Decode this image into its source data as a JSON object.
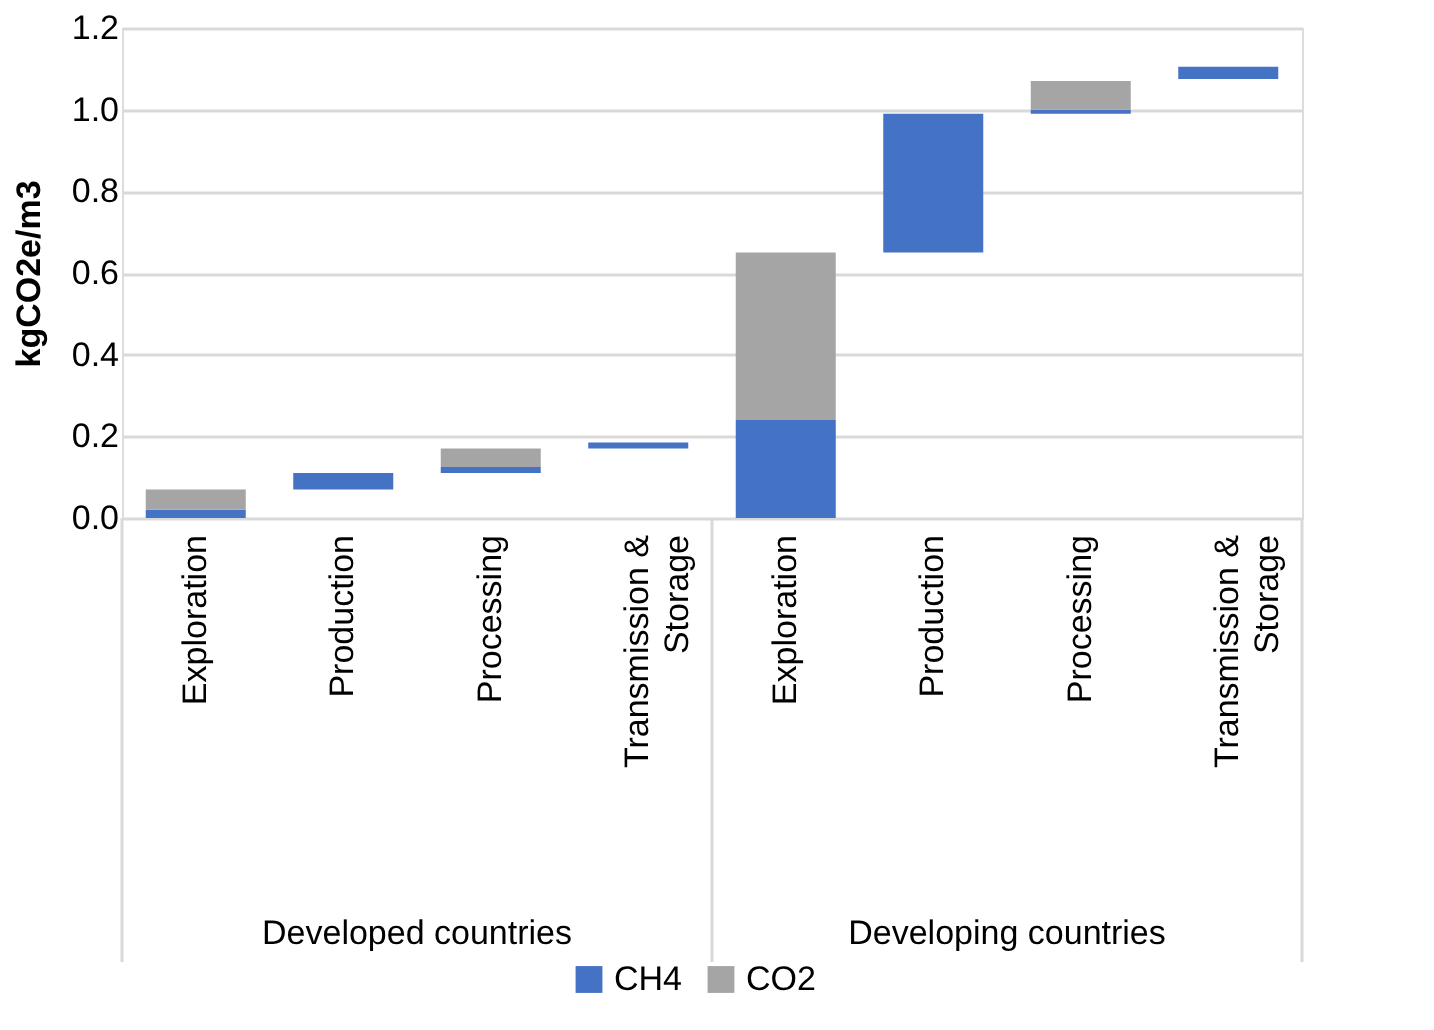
{
  "chart_data": {
    "type": "bar",
    "ylabel": "kgCO2e/m3",
    "categories": [
      "Exploration",
      "Production",
      "Processing",
      "Transmission & Storage",
      "Exploration",
      "Production",
      "Processing",
      "Transmission & Storage"
    ],
    "series": [
      {
        "name": "CH4",
        "color": "#4472c4",
        "base": [
          0,
          0.07,
          0.11,
          0.17,
          0,
          0.65,
          0.99,
          1.075
        ],
        "values": [
          0.02,
          0.04,
          0.015,
          0.015,
          0.24,
          0.34,
          0.01,
          0.03
        ]
      },
      {
        "name": "CO2",
        "color": "#a5a5a5",
        "base": [
          0.02,
          null,
          0.125,
          null,
          0.24,
          null,
          1.0,
          null
        ],
        "values": [
          0.05,
          null,
          0.045,
          null,
          0.41,
          null,
          0.07,
          null
        ]
      }
    ],
    "annotations": [
      "Developed countries",
      "Developing countries"
    ],
    "ylim": [
      0,
      1.2
    ],
    "yticks": [
      {
        "value": 0,
        "label": "0.0"
      },
      {
        "value": 0.2,
        "label": "0.2"
      },
      {
        "value": 0.4,
        "label": "0.4"
      },
      {
        "value": 0.6,
        "label": "0.6"
      },
      {
        "value": 0.8,
        "label": "0.8"
      },
      {
        "value": 1,
        "label": "1.0"
      },
      {
        "value": 1.2,
        "label": "1.2"
      }
    ],
    "grid": "y",
    "legend": "bottom"
  }
}
